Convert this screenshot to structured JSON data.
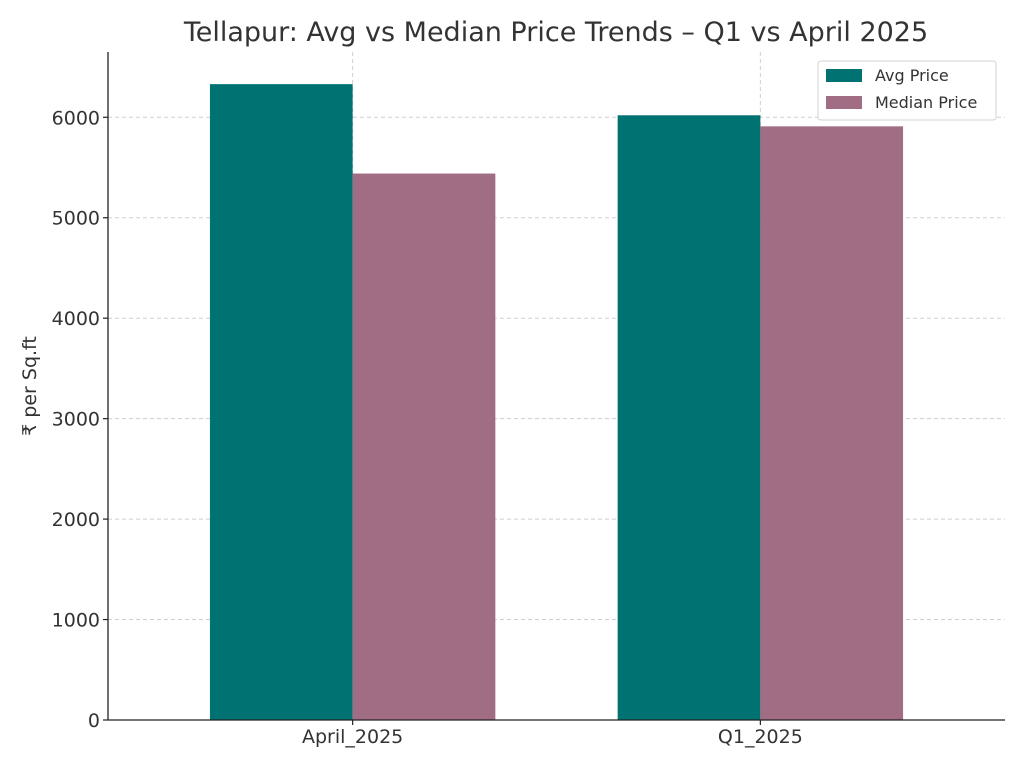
{
  "chart_data": {
    "type": "bar",
    "title": "Tellapur: Avg vs Median Price Trends – Q1 vs April 2025",
    "xlabel": "",
    "ylabel": "₹ per Sq.ft",
    "categories": [
      "April_2025",
      "Q1_2025"
    ],
    "series": [
      {
        "name": "Avg Price",
        "values": [
          6330,
          6020
        ],
        "color": "#007272"
      },
      {
        "name": "Median Price",
        "values": [
          5440,
          5910
        ],
        "color": "#a06d84"
      }
    ],
    "ylim": [
      0,
      6650
    ],
    "yticks": [
      0,
      1000,
      2000,
      3000,
      4000,
      5000,
      6000
    ],
    "grid": true,
    "legend_position": "top-right"
  }
}
